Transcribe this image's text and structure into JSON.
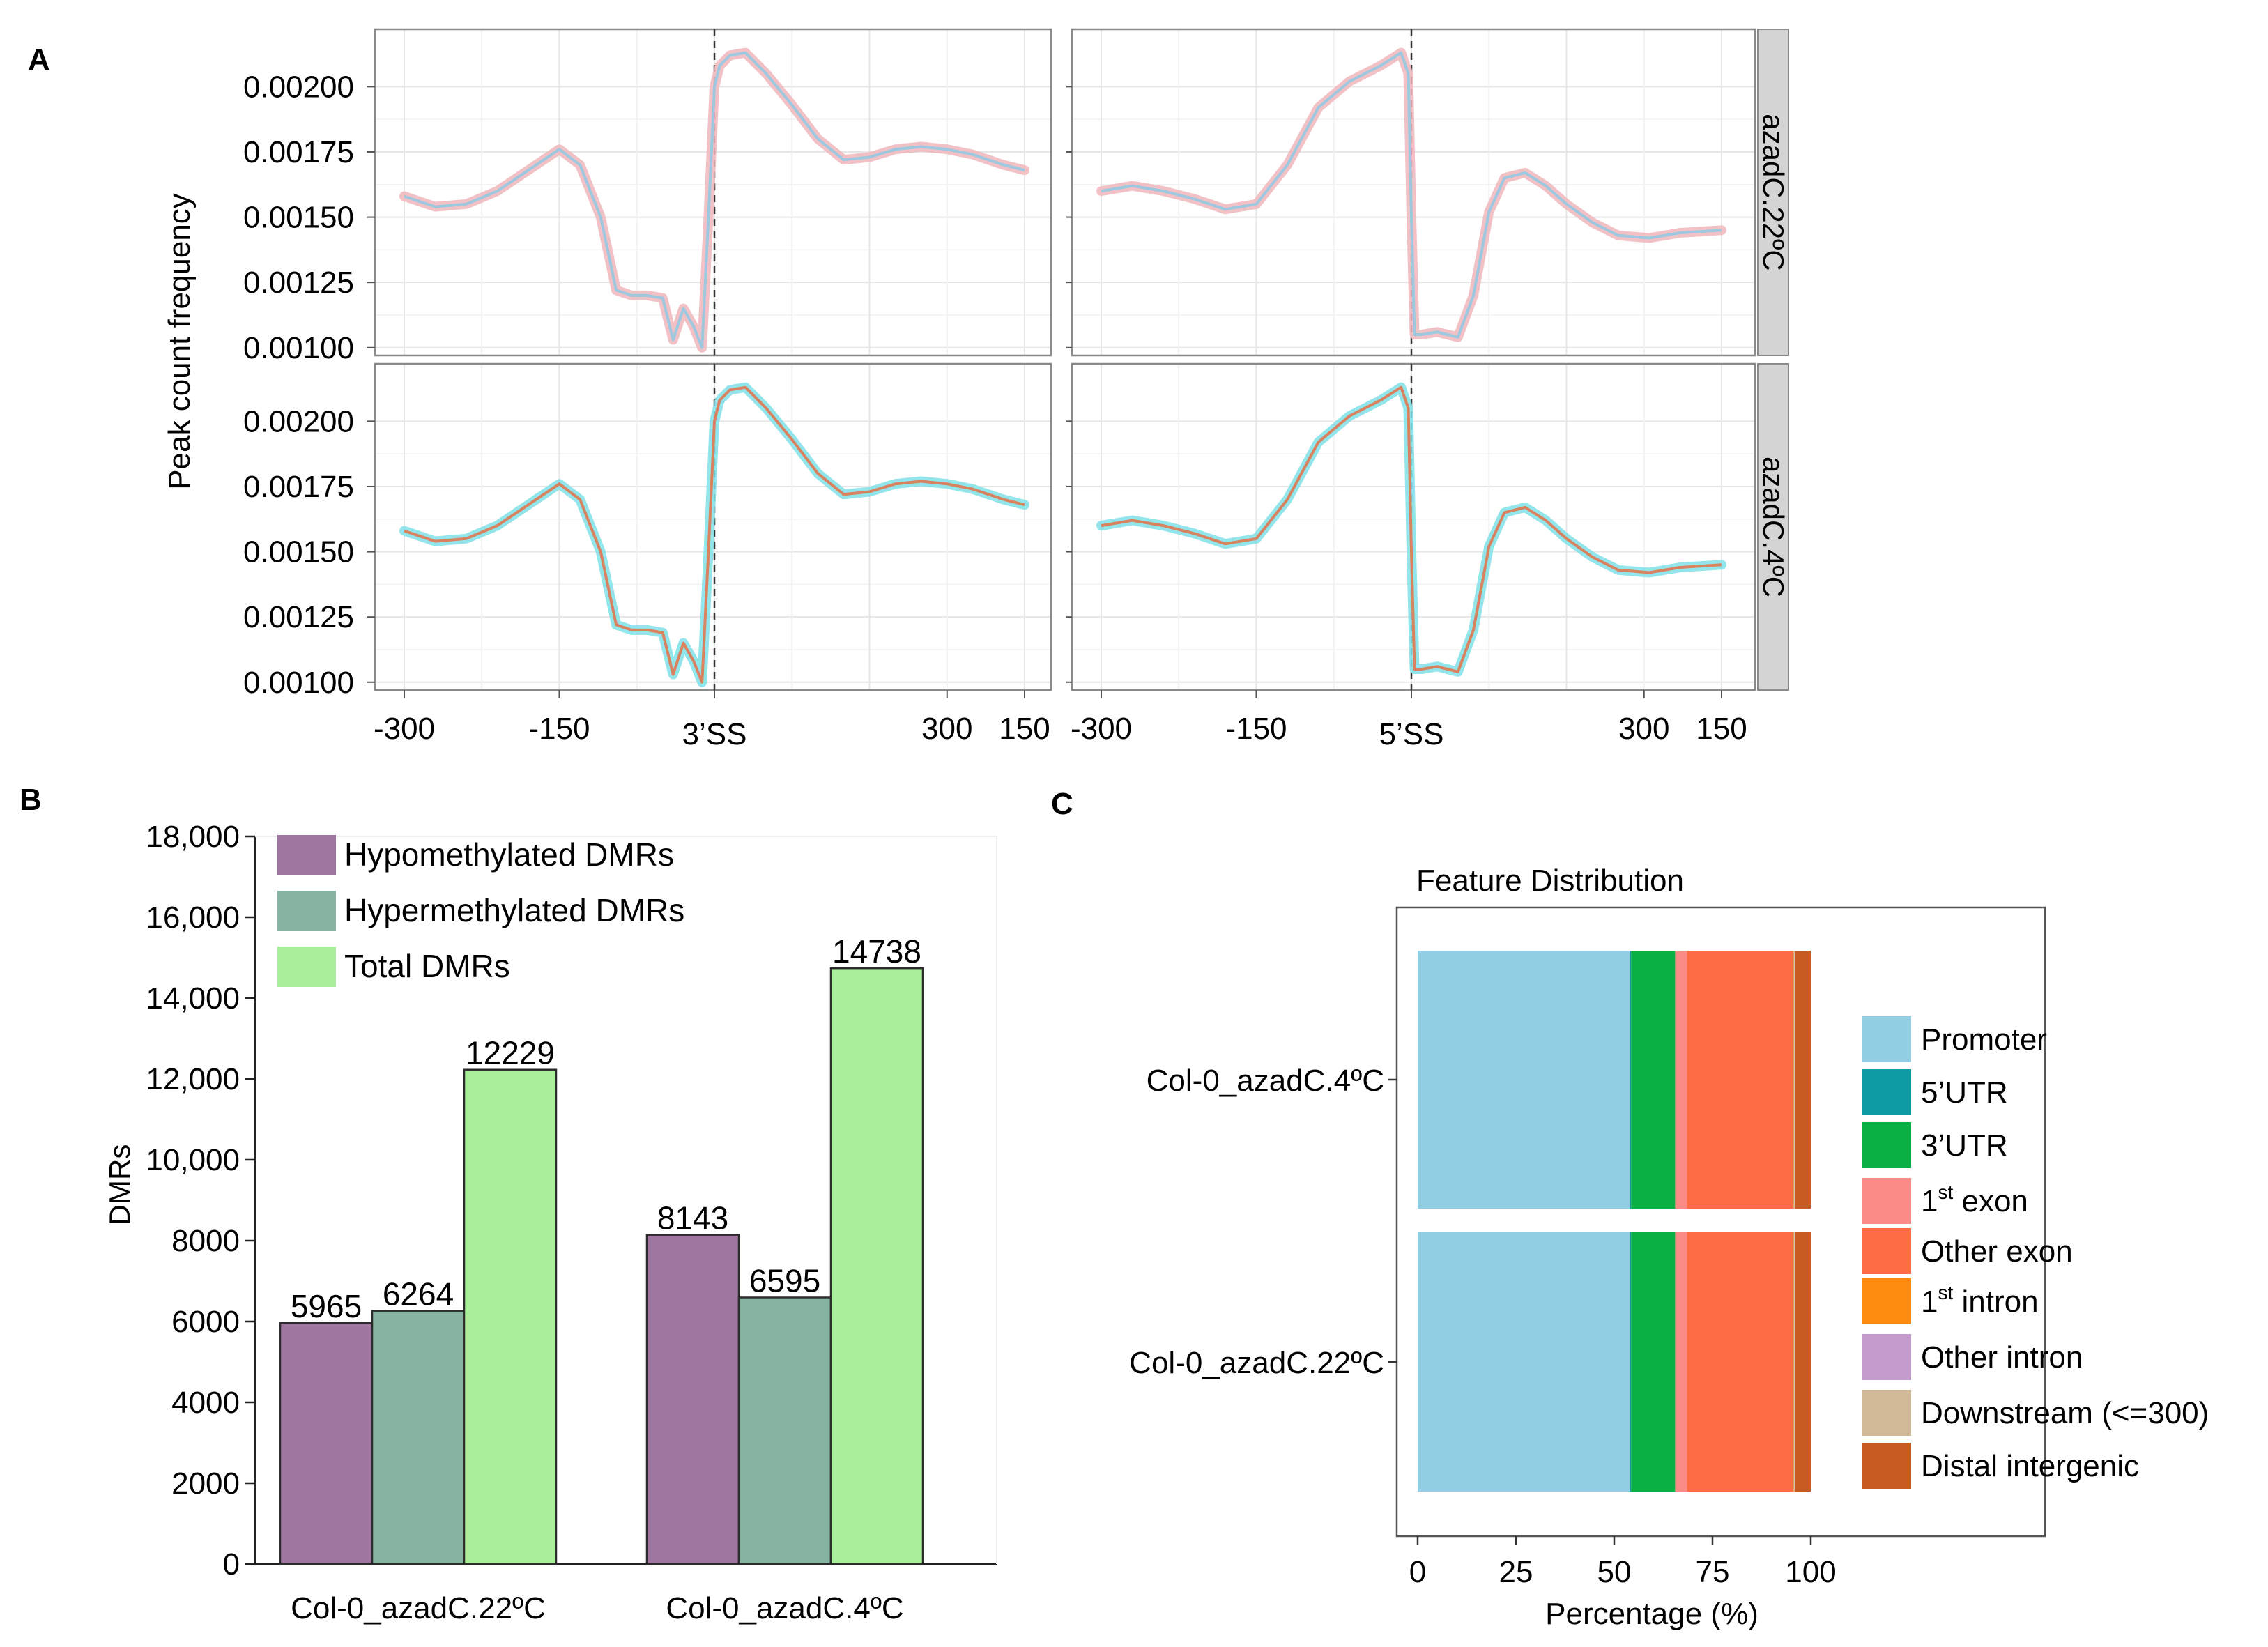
{
  "panels": {
    "A": {
      "label": "A"
    },
    "B": {
      "label": "B"
    },
    "C": {
      "label": "C"
    }
  },
  "chart_data": [
    {
      "id": "A",
      "type": "line",
      "ylabel": "Peak count frequency",
      "y_ticks": [
        "0.00100",
        "0.00125",
        "0.00150",
        "0.00175",
        "0.00200"
      ],
      "y_values": [
        0.001,
        0.00125,
        0.0015,
        0.00175,
        0.002
      ],
      "ylim": [
        0.00097,
        0.00222
      ],
      "grid": true,
      "facets": [
        {
          "name": "3'SS panel",
          "x_ticks": [
            "-300",
            "-150",
            "3’SS",
            "300",
            "150"
          ],
          "marker_label": "3’SS"
        },
        {
          "name": "5'SS panel",
          "x_ticks": [
            "-300",
            "-150",
            "5’SS",
            "300",
            "150"
          ],
          "marker_label": "5’SS"
        }
      ],
      "strips": [
        "azadC.22ºC",
        "azadC.4ºC"
      ],
      "series": [
        {
          "facet": "3'SS panel",
          "row": "azadC.22ºC",
          "colors": {
            "line": "#9ec8e0",
            "ribbon": "#f0b6bb"
          },
          "x": [
            -300,
            -270,
            -240,
            -210,
            -180,
            -150,
            -130,
            -110,
            -95,
            -80,
            -65,
            -50,
            -40,
            -30,
            -20,
            -12,
            -6,
            0,
            5,
            15,
            30,
            50,
            75,
            100,
            125,
            150,
            175,
            200,
            225,
            250,
            280,
            300
          ],
          "y": [
            0.00158,
            0.00154,
            0.00155,
            0.0016,
            0.00168,
            0.00176,
            0.0017,
            0.0015,
            0.00122,
            0.0012,
            0.0012,
            0.00119,
            0.00103,
            0.00115,
            0.00108,
            0.001,
            0.00148,
            0.002,
            0.00208,
            0.00212,
            0.00213,
            0.00205,
            0.00193,
            0.0018,
            0.00172,
            0.00173,
            0.00176,
            0.00177,
            0.00176,
            0.00174,
            0.0017,
            0.00168
          ]
        },
        {
          "facet": "5'SS panel",
          "row": "azadC.22ºC",
          "colors": {
            "line": "#9ec8e0",
            "ribbon": "#f0b6bb"
          },
          "x": [
            -300,
            -270,
            -240,
            -210,
            -180,
            -150,
            -120,
            -90,
            -60,
            -30,
            -10,
            -3,
            0,
            3,
            10,
            25,
            45,
            60,
            75,
            90,
            110,
            130,
            150,
            175,
            200,
            230,
            260,
            300
          ],
          "y": [
            0.0016,
            0.00162,
            0.0016,
            0.00157,
            0.00153,
            0.00155,
            0.0017,
            0.00192,
            0.00202,
            0.00208,
            0.00213,
            0.00205,
            0.0015,
            0.00105,
            0.00105,
            0.00106,
            0.00104,
            0.0012,
            0.00152,
            0.00165,
            0.00167,
            0.00162,
            0.00155,
            0.00148,
            0.00143,
            0.00142,
            0.00144,
            0.00145
          ]
        },
        {
          "facet": "3'SS panel",
          "row": "azadC.4ºC",
          "colors": {
            "line": "#d9825f",
            "ribbon": "#7fe0e6"
          },
          "x": [
            -300,
            -270,
            -240,
            -210,
            -180,
            -150,
            -130,
            -110,
            -95,
            -80,
            -65,
            -50,
            -40,
            -30,
            -20,
            -12,
            -6,
            0,
            5,
            15,
            30,
            50,
            75,
            100,
            125,
            150,
            175,
            200,
            225,
            250,
            280,
            300
          ],
          "y": [
            0.00158,
            0.00154,
            0.00155,
            0.0016,
            0.00168,
            0.00176,
            0.0017,
            0.0015,
            0.00122,
            0.0012,
            0.0012,
            0.00119,
            0.00103,
            0.00115,
            0.00108,
            0.001,
            0.00148,
            0.002,
            0.00208,
            0.00212,
            0.00213,
            0.00205,
            0.00193,
            0.0018,
            0.00172,
            0.00173,
            0.00176,
            0.00177,
            0.00176,
            0.00174,
            0.0017,
            0.00168
          ]
        },
        {
          "facet": "5'SS panel",
          "row": "azadC.4ºC",
          "colors": {
            "line": "#d9825f",
            "ribbon": "#7fe0e6"
          },
          "x": [
            -300,
            -270,
            -240,
            -210,
            -180,
            -150,
            -120,
            -90,
            -60,
            -30,
            -10,
            -3,
            0,
            3,
            10,
            25,
            45,
            60,
            75,
            90,
            110,
            130,
            150,
            175,
            200,
            230,
            260,
            300
          ],
          "y": [
            0.0016,
            0.00162,
            0.0016,
            0.00157,
            0.00153,
            0.00155,
            0.0017,
            0.00192,
            0.00202,
            0.00208,
            0.00213,
            0.00205,
            0.0015,
            0.00105,
            0.00105,
            0.00106,
            0.00104,
            0.0012,
            0.00152,
            0.00165,
            0.00167,
            0.00162,
            0.00155,
            0.00148,
            0.00143,
            0.00142,
            0.00144,
            0.00145
          ]
        }
      ]
    },
    {
      "id": "B",
      "type": "bar",
      "ylabel": "DMRs",
      "categories": [
        "Col-0_azadC.22ºC",
        "Col-0_azadC.4ºC"
      ],
      "y_ticks": [
        "0",
        "2000",
        "4000",
        "6000",
        "8000",
        "10,000",
        "12,000",
        "14,000",
        "16,000",
        "18,000"
      ],
      "y_values": [
        0,
        2000,
        4000,
        6000,
        8000,
        10000,
        12000,
        14000,
        16000,
        18000
      ],
      "ylim": [
        0,
        18000
      ],
      "legend_position": "top-left",
      "series": [
        {
          "name": "Hypomethylated DMRs",
          "color": "#9e76a0",
          "values": [
            5965,
            8143
          ],
          "labels": [
            "5965",
            "8143"
          ]
        },
        {
          "name": "Hypermethylated DMRs",
          "color": "#86b4a0",
          "values": [
            6264,
            6595
          ],
          "labels": [
            "6264",
            "6595"
          ]
        },
        {
          "name": "Total DMRs",
          "color": "#a9ee9a",
          "values": [
            12229,
            14738
          ],
          "labels": [
            "12229",
            "14738"
          ]
        }
      ]
    },
    {
      "id": "C",
      "type": "bar",
      "orientation": "horizontal-stacked",
      "title": "Feature Distribution",
      "xlabel": "Percentage (%)",
      "x_ticks": [
        "0",
        "25",
        "50",
        "75",
        "100"
      ],
      "x_values": [
        0,
        25,
        50,
        75,
        100
      ],
      "xlim": [
        0,
        100
      ],
      "categories": [
        "Col-0_azadC.4ºC",
        "Col-0_azadC.22ºC"
      ],
      "legend_position": "right",
      "series": [
        {
          "name": "Promoter",
          "color": "#92cde3",
          "values": [
            54,
            54
          ]
        },
        {
          "name": "5’UTR",
          "color": "#0f9ba3",
          "values": [
            0.3,
            0.3
          ]
        },
        {
          "name": "3’UTR",
          "color": "#0ab043",
          "values": [
            11.2,
            11.2
          ]
        },
        {
          "name": "1st exon",
          "color": "#fb8b86",
          "values": [
            3,
            3
          ]
        },
        {
          "name": "Other exon",
          "color": "#fd6c45",
          "values": [
            27,
            27
          ]
        },
        {
          "name": "1st intron",
          "color": "#fc8b10",
          "values": [
            0.2,
            0.2
          ]
        },
        {
          "name": "Other intron",
          "color": "#c39ccd",
          "values": [
            0.1,
            0.1
          ]
        },
        {
          "name": "Downstream (<=300)",
          "color": "#d1b998",
          "values": [
            0.2,
            0.2
          ]
        },
        {
          "name": "Distal intergenic",
          "color": "#c75b22",
          "values": [
            4,
            4
          ]
        }
      ],
      "legend_labels": [
        {
          "main": "Promoter"
        },
        {
          "main": "5’UTR"
        },
        {
          "main": "3’UTR"
        },
        {
          "pre": "1",
          "sup": "st",
          "post": " exon"
        },
        {
          "main": "Other exon"
        },
        {
          "pre": "1",
          "sup": "st",
          "post": " intron"
        },
        {
          "main": "Other intron"
        },
        {
          "main": "Downstream (<=300)"
        },
        {
          "main": "Distal intergenic"
        }
      ]
    }
  ]
}
